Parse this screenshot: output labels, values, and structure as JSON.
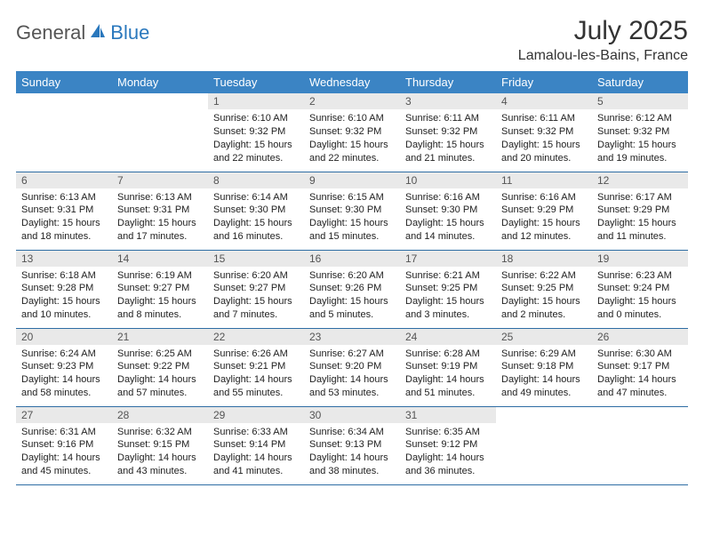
{
  "logo": {
    "general": "General",
    "blue": "Blue"
  },
  "header": {
    "month_title": "July 2025",
    "location": "Lamalou-les-Bains, France"
  },
  "colors": {
    "header_bg": "#3b84c4",
    "header_text": "#ffffff",
    "daynum_bg": "#e9e9e9",
    "row_border": "#2e6da4",
    "logo_blue": "#2a78bd"
  },
  "day_names": [
    "Sunday",
    "Monday",
    "Tuesday",
    "Wednesday",
    "Thursday",
    "Friday",
    "Saturday"
  ],
  "weeks": [
    [
      {
        "n": "",
        "sr": "",
        "ss": "",
        "dl": "",
        "empty": true
      },
      {
        "n": "",
        "sr": "",
        "ss": "",
        "dl": "",
        "empty": true
      },
      {
        "n": "1",
        "sr": "Sunrise: 6:10 AM",
        "ss": "Sunset: 9:32 PM",
        "dl": "Daylight: 15 hours and 22 minutes."
      },
      {
        "n": "2",
        "sr": "Sunrise: 6:10 AM",
        "ss": "Sunset: 9:32 PM",
        "dl": "Daylight: 15 hours and 22 minutes."
      },
      {
        "n": "3",
        "sr": "Sunrise: 6:11 AM",
        "ss": "Sunset: 9:32 PM",
        "dl": "Daylight: 15 hours and 21 minutes."
      },
      {
        "n": "4",
        "sr": "Sunrise: 6:11 AM",
        "ss": "Sunset: 9:32 PM",
        "dl": "Daylight: 15 hours and 20 minutes."
      },
      {
        "n": "5",
        "sr": "Sunrise: 6:12 AM",
        "ss": "Sunset: 9:32 PM",
        "dl": "Daylight: 15 hours and 19 minutes."
      }
    ],
    [
      {
        "n": "6",
        "sr": "Sunrise: 6:13 AM",
        "ss": "Sunset: 9:31 PM",
        "dl": "Daylight: 15 hours and 18 minutes."
      },
      {
        "n": "7",
        "sr": "Sunrise: 6:13 AM",
        "ss": "Sunset: 9:31 PM",
        "dl": "Daylight: 15 hours and 17 minutes."
      },
      {
        "n": "8",
        "sr": "Sunrise: 6:14 AM",
        "ss": "Sunset: 9:30 PM",
        "dl": "Daylight: 15 hours and 16 minutes."
      },
      {
        "n": "9",
        "sr": "Sunrise: 6:15 AM",
        "ss": "Sunset: 9:30 PM",
        "dl": "Daylight: 15 hours and 15 minutes."
      },
      {
        "n": "10",
        "sr": "Sunrise: 6:16 AM",
        "ss": "Sunset: 9:30 PM",
        "dl": "Daylight: 15 hours and 14 minutes."
      },
      {
        "n": "11",
        "sr": "Sunrise: 6:16 AM",
        "ss": "Sunset: 9:29 PM",
        "dl": "Daylight: 15 hours and 12 minutes."
      },
      {
        "n": "12",
        "sr": "Sunrise: 6:17 AM",
        "ss": "Sunset: 9:29 PM",
        "dl": "Daylight: 15 hours and 11 minutes."
      }
    ],
    [
      {
        "n": "13",
        "sr": "Sunrise: 6:18 AM",
        "ss": "Sunset: 9:28 PM",
        "dl": "Daylight: 15 hours and 10 minutes."
      },
      {
        "n": "14",
        "sr": "Sunrise: 6:19 AM",
        "ss": "Sunset: 9:27 PM",
        "dl": "Daylight: 15 hours and 8 minutes."
      },
      {
        "n": "15",
        "sr": "Sunrise: 6:20 AM",
        "ss": "Sunset: 9:27 PM",
        "dl": "Daylight: 15 hours and 7 minutes."
      },
      {
        "n": "16",
        "sr": "Sunrise: 6:20 AM",
        "ss": "Sunset: 9:26 PM",
        "dl": "Daylight: 15 hours and 5 minutes."
      },
      {
        "n": "17",
        "sr": "Sunrise: 6:21 AM",
        "ss": "Sunset: 9:25 PM",
        "dl": "Daylight: 15 hours and 3 minutes."
      },
      {
        "n": "18",
        "sr": "Sunrise: 6:22 AM",
        "ss": "Sunset: 9:25 PM",
        "dl": "Daylight: 15 hours and 2 minutes."
      },
      {
        "n": "19",
        "sr": "Sunrise: 6:23 AM",
        "ss": "Sunset: 9:24 PM",
        "dl": "Daylight: 15 hours and 0 minutes."
      }
    ],
    [
      {
        "n": "20",
        "sr": "Sunrise: 6:24 AM",
        "ss": "Sunset: 9:23 PM",
        "dl": "Daylight: 14 hours and 58 minutes."
      },
      {
        "n": "21",
        "sr": "Sunrise: 6:25 AM",
        "ss": "Sunset: 9:22 PM",
        "dl": "Daylight: 14 hours and 57 minutes."
      },
      {
        "n": "22",
        "sr": "Sunrise: 6:26 AM",
        "ss": "Sunset: 9:21 PM",
        "dl": "Daylight: 14 hours and 55 minutes."
      },
      {
        "n": "23",
        "sr": "Sunrise: 6:27 AM",
        "ss": "Sunset: 9:20 PM",
        "dl": "Daylight: 14 hours and 53 minutes."
      },
      {
        "n": "24",
        "sr": "Sunrise: 6:28 AM",
        "ss": "Sunset: 9:19 PM",
        "dl": "Daylight: 14 hours and 51 minutes."
      },
      {
        "n": "25",
        "sr": "Sunrise: 6:29 AM",
        "ss": "Sunset: 9:18 PM",
        "dl": "Daylight: 14 hours and 49 minutes."
      },
      {
        "n": "26",
        "sr": "Sunrise: 6:30 AM",
        "ss": "Sunset: 9:17 PM",
        "dl": "Daylight: 14 hours and 47 minutes."
      }
    ],
    [
      {
        "n": "27",
        "sr": "Sunrise: 6:31 AM",
        "ss": "Sunset: 9:16 PM",
        "dl": "Daylight: 14 hours and 45 minutes."
      },
      {
        "n": "28",
        "sr": "Sunrise: 6:32 AM",
        "ss": "Sunset: 9:15 PM",
        "dl": "Daylight: 14 hours and 43 minutes."
      },
      {
        "n": "29",
        "sr": "Sunrise: 6:33 AM",
        "ss": "Sunset: 9:14 PM",
        "dl": "Daylight: 14 hours and 41 minutes."
      },
      {
        "n": "30",
        "sr": "Sunrise: 6:34 AM",
        "ss": "Sunset: 9:13 PM",
        "dl": "Daylight: 14 hours and 38 minutes."
      },
      {
        "n": "31",
        "sr": "Sunrise: 6:35 AM",
        "ss": "Sunset: 9:12 PM",
        "dl": "Daylight: 14 hours and 36 minutes."
      },
      {
        "n": "",
        "sr": "",
        "ss": "",
        "dl": "",
        "empty": true
      },
      {
        "n": "",
        "sr": "",
        "ss": "",
        "dl": "",
        "empty": true
      }
    ]
  ]
}
